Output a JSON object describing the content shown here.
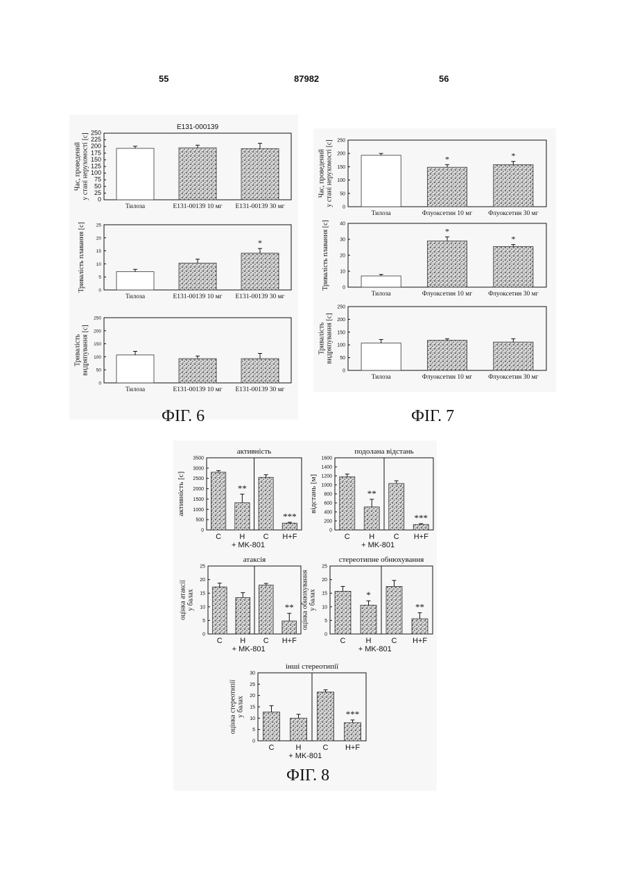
{
  "page": {
    "left_page_number": "55",
    "patent_number": "87982",
    "right_page_number": "56"
  },
  "figures": {
    "fig6": "ФІГ. 6",
    "fig7": "ФІГ. 7",
    "fig8": "ФІГ. 8"
  },
  "chart_data": [
    {
      "id": "fig6-immobility",
      "figure": "ФІГ. 6",
      "type": "bar",
      "title": "E131-000139",
      "ylabel_lines": [
        "Час, проведений",
        "у стані нерухомості [c]"
      ],
      "ylim": [
        0,
        250
      ],
      "yticks": [
        0,
        25,
        50,
        75,
        100,
        125,
        150,
        175,
        200,
        225,
        250
      ],
      "categories": [
        "Тилоза",
        "E131-00139 10 мг",
        "E131-00139 30 мг"
      ],
      "values": [
        193,
        195,
        192
      ],
      "errors": [
        8,
        10,
        20
      ],
      "stars": [
        "",
        "",
        ""
      ],
      "fills": [
        "open",
        "stipple",
        "stipple"
      ]
    },
    {
      "id": "fig6-swimming",
      "figure": "ФІГ. 6",
      "type": "bar",
      "ylabel_lines": [
        "Тривалість плавання [c]"
      ],
      "ylim": [
        0,
        25
      ],
      "yticks": [
        0,
        5,
        10,
        15,
        20,
        25
      ],
      "categories": [
        "Тилоза",
        "E131-00139 10 мг",
        "E131-00139 30 мг"
      ],
      "values": [
        7,
        10.3,
        14.1
      ],
      "errors": [
        0.9,
        1.5,
        1.8
      ],
      "stars": [
        "",
        "",
        "*"
      ],
      "fills": [
        "open",
        "stipple",
        "stipple"
      ]
    },
    {
      "id": "fig6-climbing",
      "figure": "ФІГ. 6",
      "type": "bar",
      "ylabel_lines": [
        "Тривалість",
        "видряпування [c]"
      ],
      "ylim": [
        0,
        250
      ],
      "yticks": [
        0,
        50,
        100,
        150,
        200,
        250
      ],
      "categories": [
        "Тилоза",
        "E131-00139 10 мг",
        "E131-00139 30 мг"
      ],
      "values": [
        107,
        93,
        93
      ],
      "errors": [
        14,
        10,
        20
      ],
      "stars": [
        "",
        "",
        ""
      ],
      "fills": [
        "open",
        "stipple",
        "stipple"
      ]
    },
    {
      "id": "fig7-immobility",
      "figure": "ФІГ. 7",
      "type": "bar",
      "ylabel_lines": [
        "Час, проведений",
        "у стані нерухомості [c]"
      ],
      "ylim": [
        0,
        250
      ],
      "yticks": [
        0,
        50,
        100,
        150,
        200,
        250
      ],
      "categories": [
        "Тилоза",
        "Флуоксетин 10 мг",
        "Флуоксетин 30 мг"
      ],
      "values": [
        193,
        148,
        158
      ],
      "errors": [
        7,
        10,
        12
      ],
      "stars": [
        "",
        "*",
        "*"
      ],
      "fills": [
        "open",
        "stipple",
        "stipple"
      ]
    },
    {
      "id": "fig7-swimming",
      "figure": "ФІГ. 7",
      "type": "bar",
      "ylabel_lines": [
        "Тривалість плавання [c]"
      ],
      "ylim": [
        0,
        40
      ],
      "yticks": [
        0,
        10,
        20,
        30,
        40
      ],
      "categories": [
        "Тилоза",
        "Флуоксетин 10 мг",
        "Флуоксетин 30 мг"
      ],
      "values": [
        7,
        29,
        25.5
      ],
      "errors": [
        1,
        2.5,
        1.2
      ],
      "stars": [
        "",
        "*",
        "*"
      ],
      "fills": [
        "open",
        "stipple",
        "stipple"
      ]
    },
    {
      "id": "fig7-climbing",
      "figure": "ФІГ. 7",
      "type": "bar",
      "ylabel_lines": [
        "Тривалість",
        "видряпування [c]"
      ],
      "ylim": [
        0,
        250
      ],
      "yticks": [
        0,
        50,
        100,
        150,
        200,
        250
      ],
      "categories": [
        "Тилоза",
        "Флуоксетин 10 мг",
        "Флуоксетин 30 мг"
      ],
      "values": [
        107,
        118,
        111
      ],
      "errors": [
        14,
        6,
        13
      ],
      "stars": [
        "",
        "",
        ""
      ],
      "fills": [
        "open",
        "stipple",
        "stipple"
      ]
    },
    {
      "id": "fig8-activity",
      "figure": "ФІГ. 8",
      "type": "bar",
      "title": "активність",
      "ylabel_lines": [
        "активність [c]"
      ],
      "ylim": [
        0,
        3500
      ],
      "yticks": [
        0,
        500,
        1000,
        1500,
        2000,
        2500,
        3000,
        3500
      ],
      "categories": [
        "C",
        "H",
        "C",
        "H+F"
      ],
      "group_label": "+ MK-801",
      "values": [
        2800,
        1320,
        2550,
        330
      ],
      "errors": [
        80,
        420,
        130,
        40
      ],
      "stars": [
        "",
        "**",
        "",
        "***"
      ],
      "fills": [
        "stipple",
        "stipple",
        "stipple",
        "stipple"
      ]
    },
    {
      "id": "fig8-distance",
      "figure": "ФІГ. 8",
      "type": "bar",
      "title": "подолана відстань",
      "ylabel_lines": [
        "відстань [м]"
      ],
      "ylim": [
        0,
        1600
      ],
      "yticks": [
        0,
        200,
        400,
        600,
        800,
        1000,
        1200,
        1400,
        1600
      ],
      "categories": [
        "C",
        "H",
        "C",
        "H+F"
      ],
      "group_label": "+ MK-801",
      "values": [
        1180,
        510,
        1030,
        120
      ],
      "errors": [
        60,
        170,
        60,
        20
      ],
      "stars": [
        "",
        "**",
        "",
        "***"
      ],
      "fills": [
        "stipple",
        "stipple",
        "stipple",
        "stipple"
      ]
    },
    {
      "id": "fig8-ataxia",
      "figure": "ФІГ. 8",
      "type": "bar",
      "title": "атаксія",
      "ylabel_lines": [
        "оцінка атаксії",
        "у балах"
      ],
      "ylim": [
        0,
        25
      ],
      "yticks": [
        0,
        5,
        10,
        15,
        20,
        25
      ],
      "categories": [
        "C",
        "H",
        "C",
        "H+F"
      ],
      "group_label": "+ MK-801",
      "values": [
        17.3,
        13.4,
        18,
        4.8
      ],
      "errors": [
        1.4,
        1.8,
        0.6,
        2.8
      ],
      "stars": [
        "",
        "",
        "",
        "**"
      ],
      "fills": [
        "stipple",
        "stipple",
        "stipple",
        "stipple"
      ]
    },
    {
      "id": "fig8-sniffing",
      "figure": "ФІГ. 8",
      "type": "bar",
      "title": "стереотипне обнюхування",
      "ylabel_lines": [
        "оцінка обнюхування",
        "у балах"
      ],
      "ylim": [
        0,
        25
      ],
      "yticks": [
        0,
        5,
        10,
        15,
        20,
        25
      ],
      "categories": [
        "C",
        "H",
        "C",
        "H+F"
      ],
      "group_label": "+ MK-801",
      "values": [
        15.7,
        10.6,
        17.5,
        5.6
      ],
      "errors": [
        1.8,
        1.6,
        2.2,
        2.2
      ],
      "stars": [
        "",
        "*",
        "",
        "**"
      ],
      "fills": [
        "stipple",
        "stipple",
        "stipple",
        "stipple"
      ]
    },
    {
      "id": "fig8-other",
      "figure": "ФІГ. 8",
      "type": "bar",
      "title": "інші стереотипії",
      "ylabel_lines": [
        "оцінка стереотипії",
        "у балах"
      ],
      "ylim": [
        0,
        30
      ],
      "yticks": [
        0,
        5,
        10,
        15,
        20,
        25,
        30
      ],
      "categories": [
        "C",
        "H",
        "C",
        "H+F"
      ],
      "group_label": "+ MK-801",
      "values": [
        12.7,
        10,
        21.5,
        8
      ],
      "errors": [
        2.8,
        1.7,
        1,
        1.2
      ],
      "stars": [
        "",
        "",
        "",
        "***"
      ],
      "fills": [
        "stipple",
        "stipple",
        "stipple",
        "stipple"
      ]
    }
  ]
}
